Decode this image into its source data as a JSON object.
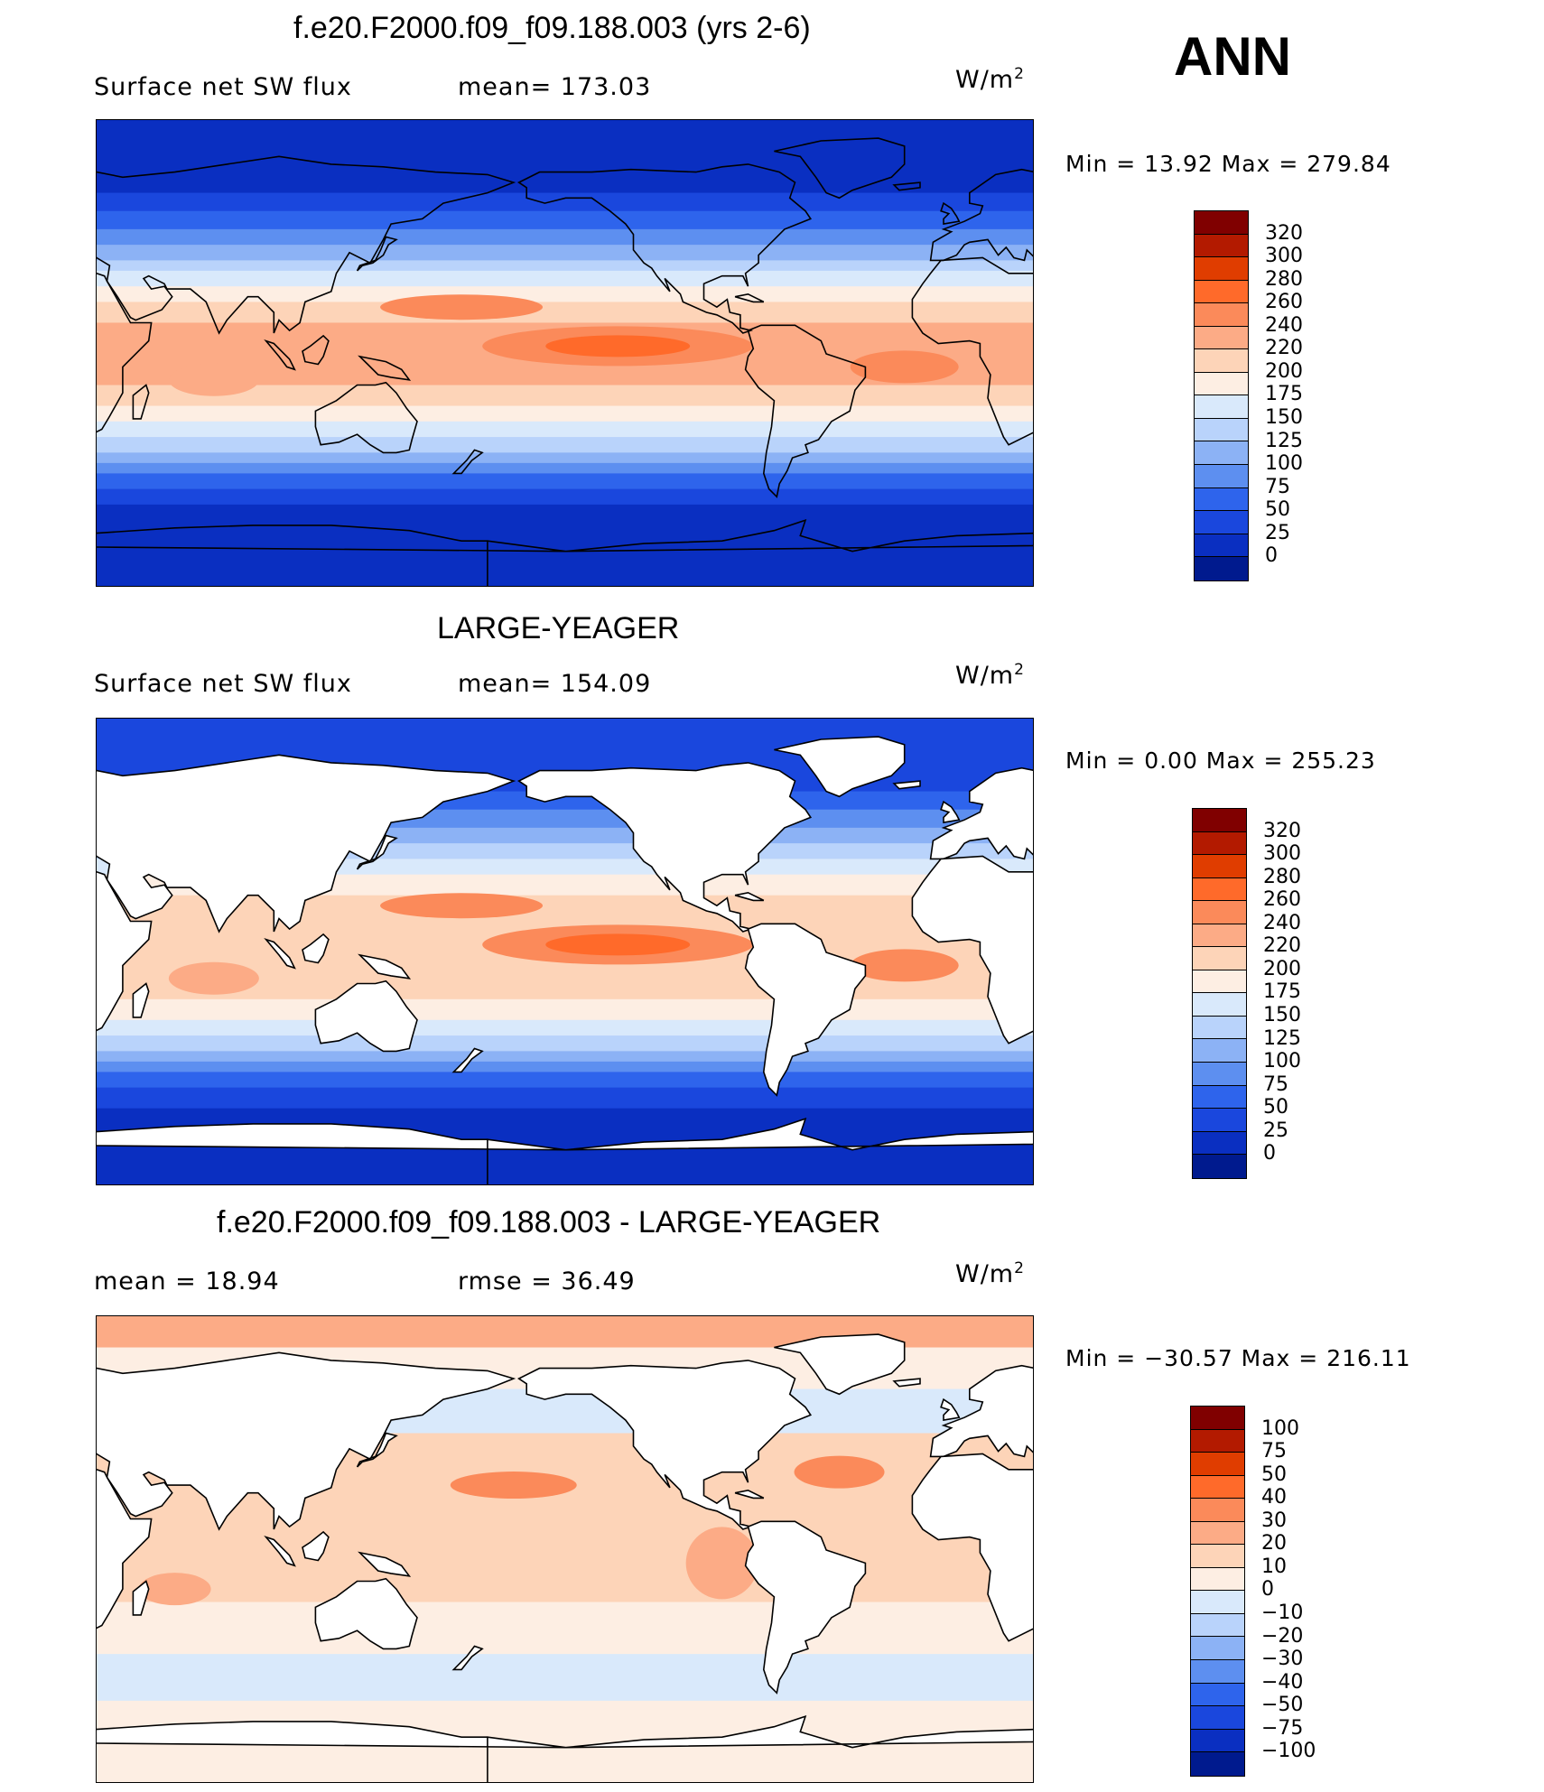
{
  "season": "ANN",
  "panels": [
    {
      "title": "f.e20.F2000.f09_f09.188.003 (yrs 2-6)",
      "left_label": "Surface  net  SW  flux",
      "stat_label": "mean=  173.03",
      "units_base": "W/m",
      "units_exp": "2",
      "minmax": "Min  =     13.92  Max  =  279.84",
      "colorbar": {
        "labels": [
          "320",
          "300",
          "280",
          "260",
          "240",
          "220",
          "200",
          "175",
          "150",
          "125",
          "100",
          "75",
          "50",
          "25",
          "0"
        ],
        "colors": [
          "#800000",
          "#b31a00",
          "#e03d00",
          "#ff6a2a",
          "#fb8a5a",
          "#fcab86",
          "#fdd4b8",
          "#fdeee3",
          "#d9e9fb",
          "#b9d3fb",
          "#8cb2f5",
          "#5d8ff0",
          "#2e64ec",
          "#1a47dd",
          "#0a2fc1",
          "#001a8e"
        ]
      }
    },
    {
      "title": "LARGE-YEAGER",
      "left_label": "Surface  net  SW  flux",
      "stat_label": "mean=  154.09",
      "units_base": "W/m",
      "units_exp": "2",
      "minmax": "Min  =      0.00  Max  =  255.23",
      "colorbar": {
        "labels": [
          "320",
          "300",
          "280",
          "260",
          "240",
          "220",
          "200",
          "175",
          "150",
          "125",
          "100",
          "75",
          "50",
          "25",
          "0"
        ],
        "colors": [
          "#800000",
          "#b31a00",
          "#e03d00",
          "#ff6a2a",
          "#fb8a5a",
          "#fcab86",
          "#fdd4b8",
          "#fdeee3",
          "#d9e9fb",
          "#b9d3fb",
          "#8cb2f5",
          "#5d8ff0",
          "#2e64ec",
          "#1a47dd",
          "#0a2fc1",
          "#001a8e"
        ]
      }
    },
    {
      "title": "f.e20.F2000.f09_f09.188.003 - LARGE-YEAGER",
      "left_label": "mean  =     18.94",
      "stat_label": "rmse  =     36.49",
      "units_base": "W/m",
      "units_exp": "2",
      "minmax": "Min  =  −30.57  Max  =  216.11",
      "colorbar": {
        "labels": [
          "100",
          "75",
          "50",
          "40",
          "30",
          "20",
          "10",
          "0",
          "−10",
          "−20",
          "−30",
          "−40",
          "−50",
          "−75",
          "−100"
        ],
        "colors": [
          "#800000",
          "#b31a00",
          "#e03d00",
          "#ff6a2a",
          "#fb8a5a",
          "#fcab86",
          "#fdd4b8",
          "#fdeee3",
          "#d9e9fb",
          "#b9d3fb",
          "#8cb2f5",
          "#5d8ff0",
          "#2e64ec",
          "#1a47dd",
          "#0a2fc1",
          "#001a8e"
        ]
      }
    }
  ]
}
